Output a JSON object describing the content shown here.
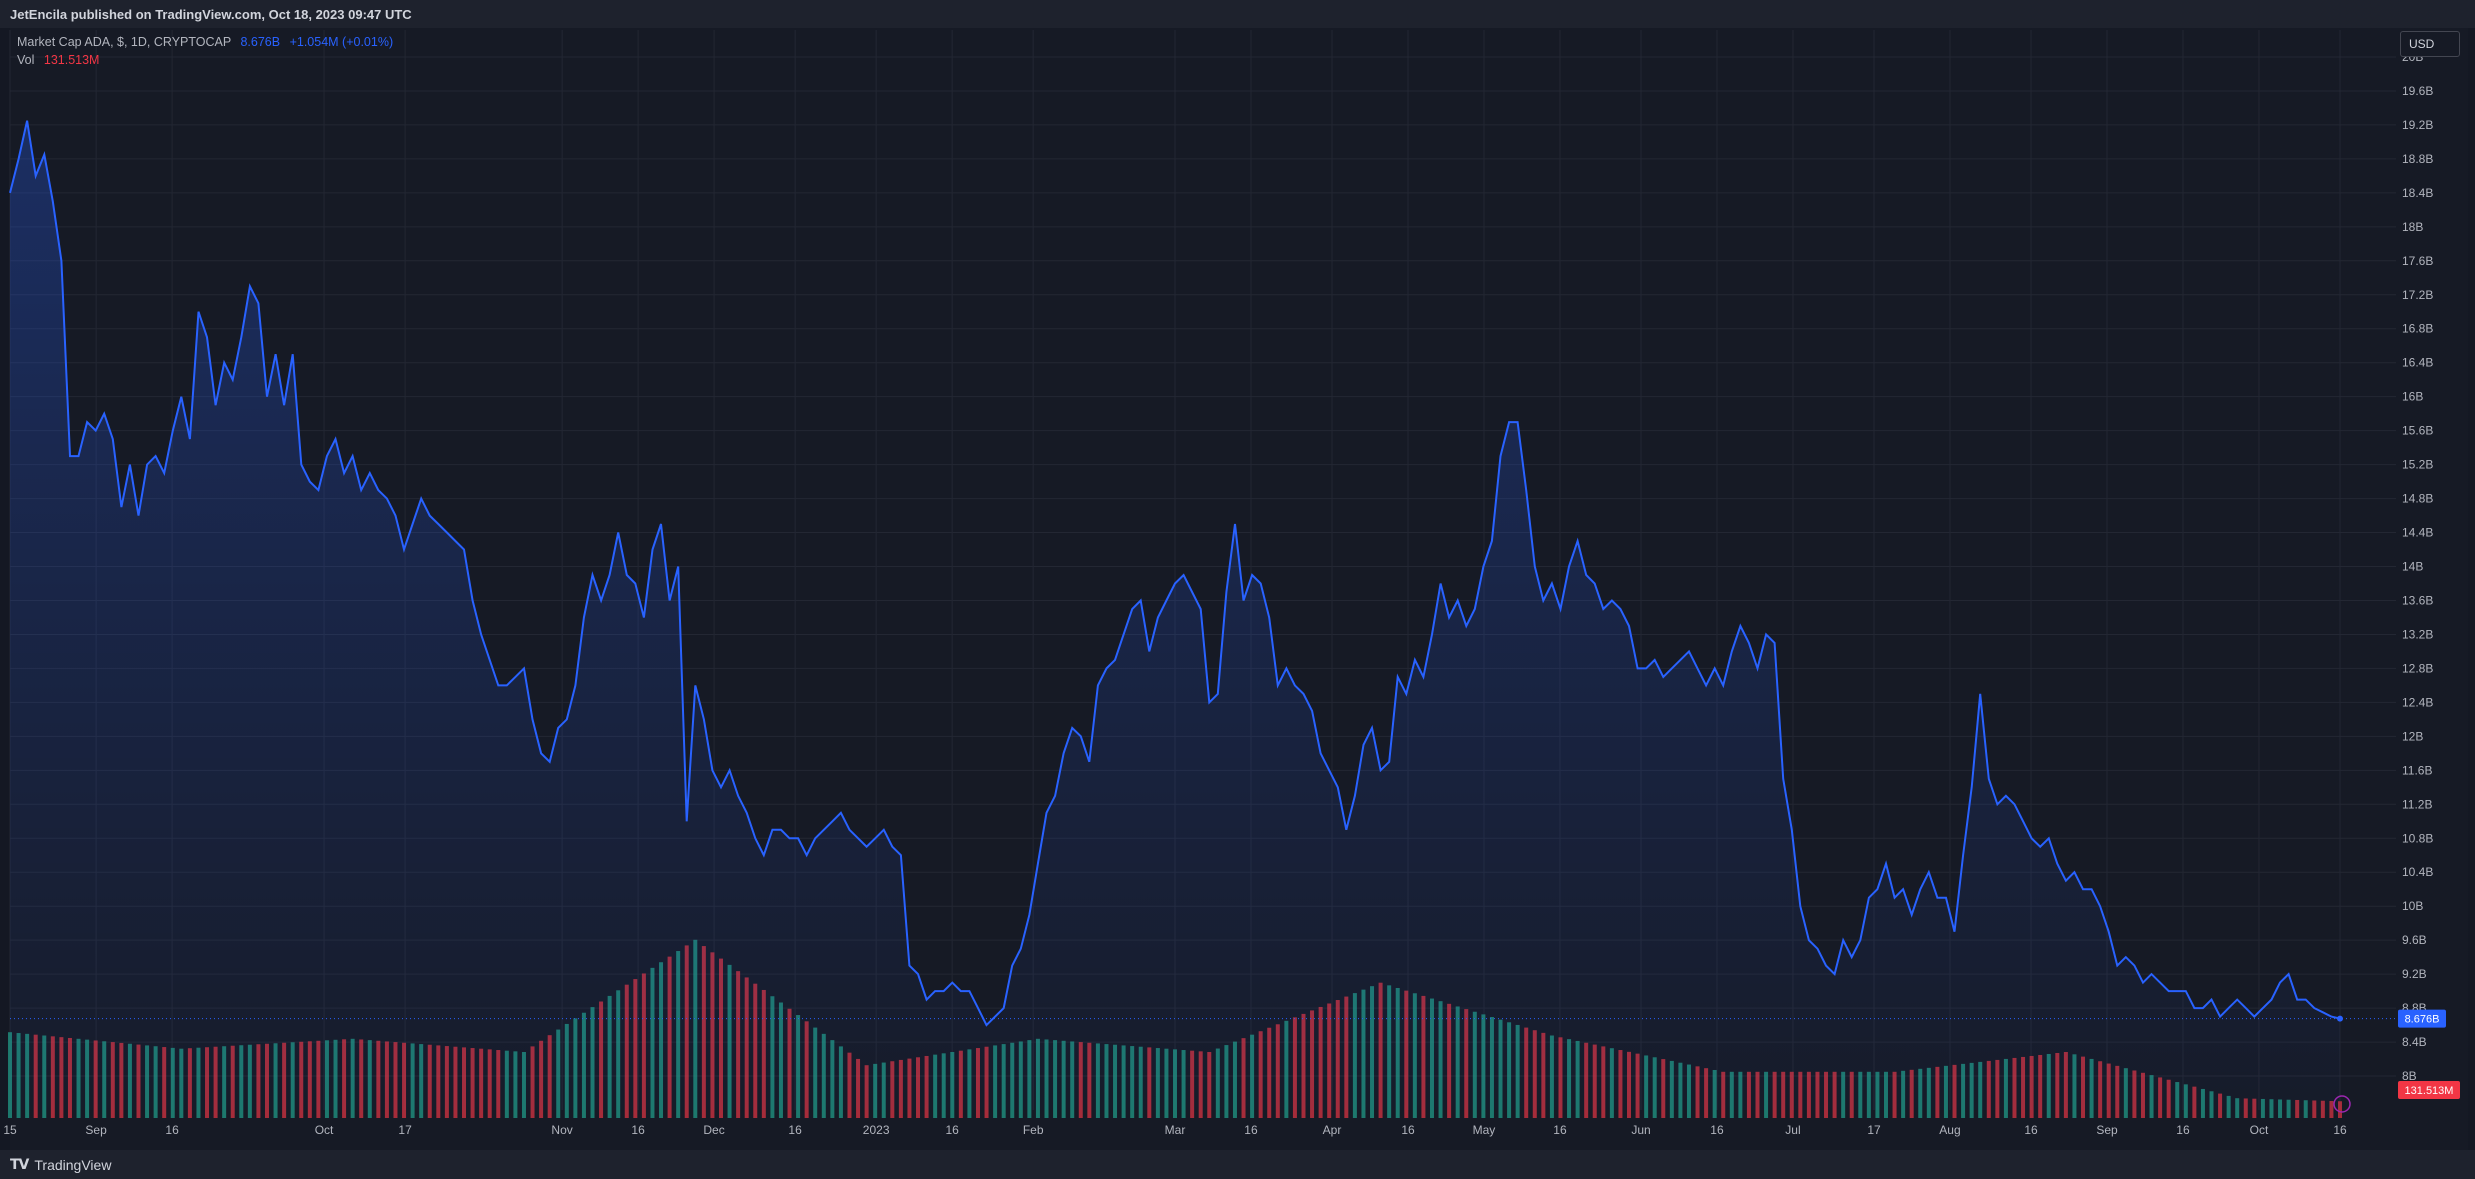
{
  "header": {
    "published": "JetEncila published on TradingView.com, Oct 18, 2023 09:47 UTC"
  },
  "legend": {
    "symbol": "Market Cap ADA, $, 1D, CRYPTOCAP",
    "value": "8.676B",
    "change": "+1.054M (+0.01%)",
    "vol_label": "Vol",
    "vol_value": "131.513M"
  },
  "toolbar": {
    "currency": "USD"
  },
  "footer": {
    "brand": "TradingView"
  },
  "colors": {
    "line": "#2962ff",
    "up": "#22ab94",
    "down": "#f23645",
    "bg": "#161a25",
    "grid": "#232733"
  },
  "chart_data": {
    "type": "line",
    "y_unit": "USD",
    "ylim": [
      7.6,
      20.2
    ],
    "y_ticks": [
      "20B",
      "19.6B",
      "19.2B",
      "18.8B",
      "18.4B",
      "18B",
      "17.6B",
      "17.2B",
      "16.8B",
      "16.4B",
      "16B",
      "15.6B",
      "15.2B",
      "14.8B",
      "14.4B",
      "14B",
      "13.6B",
      "13.2B",
      "12.8B",
      "12.4B",
      "12B",
      "11.6B",
      "11.2B",
      "10.8B",
      "10.4B",
      "10B",
      "9.6B",
      "9.2B",
      "8.8B",
      "8.4B",
      "8B"
    ],
    "y_tick_values": [
      20,
      19.6,
      19.2,
      18.8,
      18.4,
      18,
      17.6,
      17.2,
      16.8,
      16.4,
      16,
      15.6,
      15.2,
      14.8,
      14.4,
      14,
      13.6,
      13.2,
      12.8,
      12.4,
      12,
      11.6,
      11.2,
      10.8,
      10.4,
      10,
      9.6,
      9.2,
      8.8,
      8.4,
      8
    ],
    "x_ticks": [
      "15",
      "Sep",
      "16",
      "Oct",
      "17",
      "Nov",
      "16",
      "Dec",
      "16",
      "2023",
      "16",
      "Feb",
      "Mar",
      "16",
      "Apr",
      "16",
      "May",
      "16",
      "Jun",
      "16",
      "Jul",
      "17",
      "Aug",
      "16",
      "Sep",
      "16",
      "Oct",
      "16"
    ],
    "x_tick_days": [
      0,
      17,
      32,
      62,
      78,
      109,
      124,
      139,
      155,
      171,
      186,
      202,
      230,
      245,
      261,
      276,
      291,
      306,
      322,
      337,
      352,
      368,
      383,
      399,
      414,
      429,
      444,
      460
    ],
    "series": [
      {
        "values_billion_usd": [
          [
            0,
            18.4
          ],
          [
            1,
            18.8
          ],
          [
            2,
            19.25
          ],
          [
            3,
            18.6
          ],
          [
            4,
            18.85
          ],
          [
            5,
            18.3
          ],
          [
            6,
            17.6
          ],
          [
            7,
            15.3
          ],
          [
            8,
            15.3
          ],
          [
            9,
            15.7
          ],
          [
            10,
            15.6
          ],
          [
            11,
            15.8
          ],
          [
            12,
            15.5
          ],
          [
            13,
            14.7
          ],
          [
            14,
            15.2
          ],
          [
            15,
            14.6
          ],
          [
            16,
            15.2
          ],
          [
            17,
            15.3
          ],
          [
            18,
            15.1
          ],
          [
            19,
            15.6
          ],
          [
            20,
            16.0
          ],
          [
            21,
            15.5
          ],
          [
            22,
            17.0
          ],
          [
            23,
            16.7
          ],
          [
            24,
            15.9
          ],
          [
            25,
            16.4
          ],
          [
            26,
            16.2
          ],
          [
            27,
            16.7
          ],
          [
            28,
            17.3
          ],
          [
            29,
            17.1
          ],
          [
            30,
            16.0
          ],
          [
            31,
            16.5
          ],
          [
            32,
            15.9
          ],
          [
            33,
            16.5
          ],
          [
            34,
            15.2
          ],
          [
            35,
            15.0
          ],
          [
            36,
            14.9
          ],
          [
            37,
            15.3
          ],
          [
            38,
            15.5
          ],
          [
            39,
            15.1
          ],
          [
            40,
            15.3
          ],
          [
            41,
            14.9
          ],
          [
            42,
            15.1
          ],
          [
            43,
            14.9
          ],
          [
            44,
            14.8
          ],
          [
            45,
            14.6
          ],
          [
            46,
            14.2
          ],
          [
            47,
            14.5
          ],
          [
            48,
            14.8
          ],
          [
            49,
            14.6
          ],
          [
            50,
            14.5
          ],
          [
            51,
            14.4
          ],
          [
            52,
            14.3
          ],
          [
            53,
            14.2
          ],
          [
            54,
            13.6
          ],
          [
            55,
            13.2
          ],
          [
            56,
            12.9
          ],
          [
            57,
            12.6
          ],
          [
            58,
            12.6
          ],
          [
            59,
            12.7
          ],
          [
            60,
            12.8
          ],
          [
            61,
            12.2
          ],
          [
            62,
            11.8
          ],
          [
            63,
            11.7
          ],
          [
            64,
            12.1
          ],
          [
            65,
            12.2
          ],
          [
            66,
            12.6
          ],
          [
            67,
            13.4
          ],
          [
            68,
            13.9
          ],
          [
            69,
            13.6
          ],
          [
            70,
            13.9
          ],
          [
            71,
            14.4
          ],
          [
            72,
            13.9
          ],
          [
            73,
            13.8
          ],
          [
            74,
            13.4
          ],
          [
            75,
            14.2
          ],
          [
            76,
            14.5
          ],
          [
            77,
            13.6
          ],
          [
            78,
            14.0
          ],
          [
            79,
            11.0
          ],
          [
            80,
            12.6
          ],
          [
            81,
            12.2
          ],
          [
            82,
            11.6
          ],
          [
            83,
            11.4
          ],
          [
            84,
            11.6
          ],
          [
            85,
            11.3
          ],
          [
            86,
            11.1
          ],
          [
            87,
            10.8
          ],
          [
            88,
            10.6
          ],
          [
            89,
            10.9
          ],
          [
            90,
            10.9
          ],
          [
            91,
            10.8
          ],
          [
            92,
            10.8
          ],
          [
            93,
            10.6
          ],
          [
            94,
            10.8
          ],
          [
            95,
            10.9
          ],
          [
            96,
            11.0
          ],
          [
            97,
            11.1
          ],
          [
            98,
            10.9
          ],
          [
            99,
            10.8
          ],
          [
            100,
            10.7
          ],
          [
            101,
            10.8
          ],
          [
            102,
            10.9
          ],
          [
            103,
            10.7
          ],
          [
            104,
            10.6
          ],
          [
            105,
            9.3
          ],
          [
            106,
            9.2
          ],
          [
            107,
            8.9
          ],
          [
            108,
            9.0
          ],
          [
            109,
            9.0
          ],
          [
            110,
            9.1
          ],
          [
            111,
            9.0
          ],
          [
            112,
            9.0
          ],
          [
            113,
            8.8
          ],
          [
            114,
            8.6
          ],
          [
            115,
            8.7
          ],
          [
            116,
            8.8
          ],
          [
            117,
            9.3
          ],
          [
            118,
            9.5
          ],
          [
            119,
            9.9
          ],
          [
            120,
            10.5
          ],
          [
            121,
            11.1
          ],
          [
            122,
            11.3
          ],
          [
            123,
            11.8
          ],
          [
            124,
            12.1
          ],
          [
            125,
            12.0
          ],
          [
            126,
            11.7
          ],
          [
            127,
            12.6
          ],
          [
            128,
            12.8
          ],
          [
            129,
            12.9
          ],
          [
            130,
            13.2
          ],
          [
            131,
            13.5
          ],
          [
            132,
            13.6
          ],
          [
            133,
            13.0
          ],
          [
            134,
            13.4
          ],
          [
            135,
            13.6
          ],
          [
            136,
            13.8
          ],
          [
            137,
            13.9
          ],
          [
            138,
            13.7
          ],
          [
            139,
            13.5
          ],
          [
            140,
            12.4
          ],
          [
            141,
            12.5
          ],
          [
            142,
            13.7
          ],
          [
            143,
            14.5
          ],
          [
            144,
            13.6
          ],
          [
            145,
            13.9
          ],
          [
            146,
            13.8
          ],
          [
            147,
            13.4
          ],
          [
            148,
            12.6
          ],
          [
            149,
            12.8
          ],
          [
            150,
            12.6
          ],
          [
            151,
            12.5
          ],
          [
            152,
            12.3
          ],
          [
            153,
            11.8
          ],
          [
            154,
            11.6
          ],
          [
            155,
            11.4
          ],
          [
            156,
            10.9
          ],
          [
            157,
            11.3
          ],
          [
            158,
            11.9
          ],
          [
            159,
            12.1
          ],
          [
            160,
            11.6
          ],
          [
            161,
            11.7
          ],
          [
            162,
            12.7
          ],
          [
            163,
            12.5
          ],
          [
            164,
            12.9
          ],
          [
            165,
            12.7
          ],
          [
            166,
            13.2
          ],
          [
            167,
            13.8
          ],
          [
            168,
            13.4
          ],
          [
            169,
            13.6
          ],
          [
            170,
            13.3
          ],
          [
            171,
            13.5
          ],
          [
            172,
            14.0
          ],
          [
            173,
            14.3
          ],
          [
            174,
            15.3
          ],
          [
            175,
            15.7
          ],
          [
            176,
            15.7
          ],
          [
            177,
            14.9
          ],
          [
            178,
            14.0
          ],
          [
            179,
            13.6
          ],
          [
            180,
            13.8
          ],
          [
            181,
            13.5
          ],
          [
            182,
            14.0
          ],
          [
            183,
            14.3
          ],
          [
            184,
            13.9
          ],
          [
            185,
            13.8
          ],
          [
            186,
            13.5
          ],
          [
            187,
            13.6
          ],
          [
            188,
            13.5
          ],
          [
            189,
            13.3
          ],
          [
            190,
            12.8
          ],
          [
            191,
            12.8
          ],
          [
            192,
            12.9
          ],
          [
            193,
            12.7
          ],
          [
            194,
            12.8
          ],
          [
            195,
            12.9
          ],
          [
            196,
            13.0
          ],
          [
            197,
            12.8
          ],
          [
            198,
            12.6
          ],
          [
            199,
            12.8
          ],
          [
            200,
            12.6
          ],
          [
            201,
            13.0
          ],
          [
            202,
            13.3
          ],
          [
            203,
            13.1
          ],
          [
            204,
            12.8
          ],
          [
            205,
            13.2
          ],
          [
            206,
            13.1
          ],
          [
            207,
            11.5
          ],
          [
            208,
            10.9
          ],
          [
            209,
            10.0
          ],
          [
            210,
            9.6
          ],
          [
            211,
            9.5
          ],
          [
            212,
            9.3
          ],
          [
            213,
            9.2
          ],
          [
            214,
            9.6
          ],
          [
            215,
            9.4
          ],
          [
            216,
            9.6
          ],
          [
            217,
            10.1
          ],
          [
            218,
            10.2
          ],
          [
            219,
            10.5
          ],
          [
            220,
            10.1
          ],
          [
            221,
            10.2
          ],
          [
            222,
            9.9
          ],
          [
            223,
            10.2
          ],
          [
            224,
            10.4
          ],
          [
            225,
            10.1
          ],
          [
            226,
            10.1
          ],
          [
            227,
            9.7
          ],
          [
            228,
            10.6
          ],
          [
            229,
            11.4
          ],
          [
            230,
            12.5
          ],
          [
            231,
            11.5
          ],
          [
            232,
            11.2
          ],
          [
            233,
            11.3
          ],
          [
            234,
            11.2
          ],
          [
            235,
            11.0
          ],
          [
            236,
            10.8
          ],
          [
            237,
            10.7
          ],
          [
            238,
            10.8
          ],
          [
            239,
            10.5
          ],
          [
            240,
            10.3
          ],
          [
            241,
            10.4
          ],
          [
            242,
            10.2
          ],
          [
            243,
            10.2
          ],
          [
            244,
            10.0
          ],
          [
            245,
            9.7
          ],
          [
            246,
            9.3
          ],
          [
            247,
            9.4
          ],
          [
            248,
            9.3
          ],
          [
            249,
            9.1
          ],
          [
            250,
            9.2
          ],
          [
            251,
            9.1
          ],
          [
            252,
            9.0
          ],
          [
            253,
            9.0
          ],
          [
            254,
            9.0
          ],
          [
            255,
            8.8
          ],
          [
            256,
            8.8
          ],
          [
            257,
            8.9
          ],
          [
            258,
            8.7
          ],
          [
            259,
            8.8
          ],
          [
            260,
            8.9
          ],
          [
            261,
            8.8
          ],
          [
            262,
            8.7
          ],
          [
            263,
            8.8
          ],
          [
            264,
            8.9
          ],
          [
            265,
            9.1
          ],
          [
            266,
            9.2
          ],
          [
            267,
            8.9
          ],
          [
            268,
            8.9
          ],
          [
            269,
            8.8
          ],
          [
            270,
            8.75
          ],
          [
            271,
            8.7
          ],
          [
            272,
            8.676
          ]
        ]
      }
    ],
    "volume_million_usd": [
      [
        0,
        260,
        "up"
      ],
      [
        20,
        210,
        "down"
      ],
      [
        40,
        240,
        "up"
      ],
      [
        60,
        200,
        "down"
      ],
      [
        80,
        540,
        "down"
      ],
      [
        100,
        160,
        "up"
      ],
      [
        120,
        240,
        "up"
      ],
      [
        140,
        200,
        "down"
      ],
      [
        160,
        410,
        "down"
      ],
      [
        180,
        250,
        "up"
      ],
      [
        200,
        140,
        "up"
      ],
      [
        220,
        140,
        "down"
      ],
      [
        240,
        200,
        "up"
      ],
      [
        260,
        60,
        "up"
      ]
    ]
  }
}
